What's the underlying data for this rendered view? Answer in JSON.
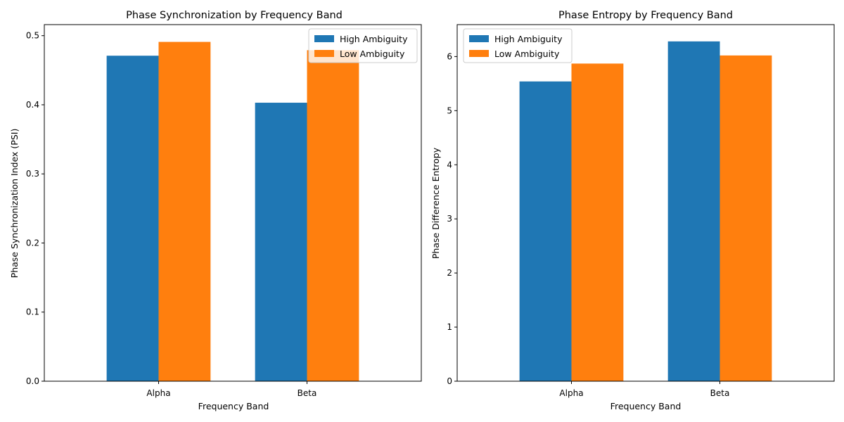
{
  "chart_data": [
    {
      "type": "bar",
      "title": "Phase Synchronization by Frequency Band",
      "xlabel": "Frequency Band",
      "ylabel": "Phase Synchronization Index (PSI)",
      "categories": [
        "Alpha",
        "Beta"
      ],
      "series": [
        {
          "name": "High Ambiguity",
          "values": [
            0.471,
            0.403
          ],
          "color": "#1f77b4"
        },
        {
          "name": "Low Ambiguity",
          "values": [
            0.491,
            0.479
          ],
          "color": "#ff7f0e"
        }
      ],
      "ylim": [
        0,
        0.516
      ],
      "yticks": [
        0.0,
        0.1,
        0.2,
        0.3,
        0.4,
        0.5
      ],
      "ytick_labels": [
        "0.0",
        "0.1",
        "0.2",
        "0.3",
        "0.4",
        "0.5"
      ],
      "legend_position": "top-right",
      "grid": false
    },
    {
      "type": "bar",
      "title": "Phase Entropy by Frequency Band",
      "xlabel": "Frequency Band",
      "ylabel": "Phase Difference Entropy",
      "categories": [
        "Alpha",
        "Beta"
      ],
      "series": [
        {
          "name": "High Ambiguity",
          "values": [
            5.54,
            6.28
          ],
          "color": "#1f77b4"
        },
        {
          "name": "Low Ambiguity",
          "values": [
            5.87,
            6.02
          ],
          "color": "#ff7f0e"
        }
      ],
      "ylim": [
        0,
        6.59
      ],
      "yticks": [
        0,
        1,
        2,
        3,
        4,
        5,
        6
      ],
      "ytick_labels": [
        "0",
        "1",
        "2",
        "3",
        "4",
        "5",
        "6"
      ],
      "legend_position": "top-left",
      "grid": false
    }
  ]
}
